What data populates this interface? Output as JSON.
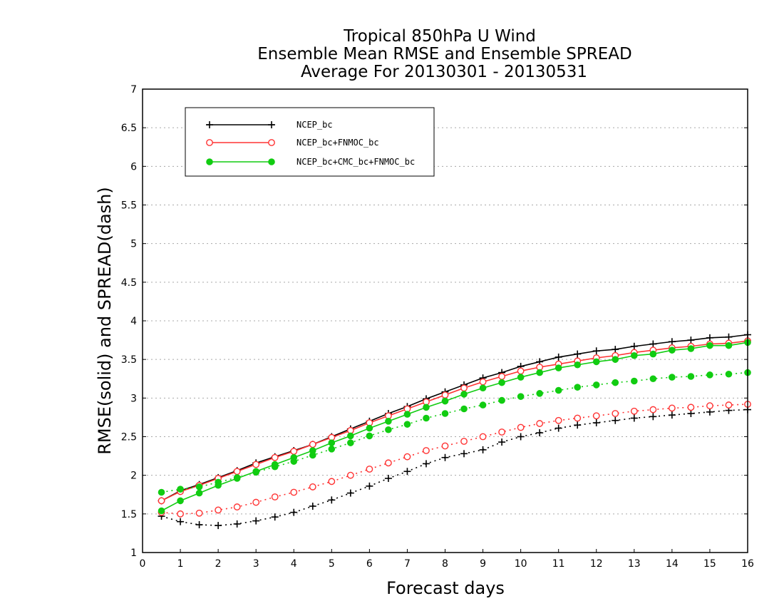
{
  "chart_data": {
    "type": "line",
    "title_lines": [
      "Tropical 850hPa U Wind",
      "Ensemble Mean RMSE and Ensemble SPREAD",
      "Average For 20130301 - 20130531"
    ],
    "xlabel": "Forecast days",
    "ylabel": "RMSE(solid) and SPREAD(dash)",
    "xlim": [
      0,
      16
    ],
    "ylim": [
      1,
      7
    ],
    "xticks": [
      0,
      1,
      2,
      3,
      4,
      5,
      6,
      7,
      8,
      9,
      10,
      11,
      12,
      13,
      14,
      15,
      16
    ],
    "xtick_labels": [
      "0",
      "1",
      "2",
      "3",
      "4",
      "5",
      "6",
      "7",
      "8",
      "9",
      "10",
      "11",
      "12",
      "13",
      "14",
      "15",
      "16"
    ],
    "yticks": [
      1,
      1.5,
      2,
      2.5,
      3,
      3.5,
      4,
      4.5,
      5,
      5.5,
      6,
      6.5,
      7
    ],
    "ytick_labels": [
      "1",
      "1.5",
      "2",
      "2.5",
      "3",
      "3.5",
      "4",
      "4.5",
      "5",
      "5.5",
      "6",
      "6.5",
      "7"
    ],
    "grid": "horizontal dotted",
    "legend_position": "top-left",
    "x": [
      0.5,
      1,
      1.5,
      2,
      2.5,
      3,
      3.5,
      4,
      4.5,
      5,
      5.5,
      6,
      6.5,
      7,
      7.5,
      8,
      8.5,
      9,
      9.5,
      10,
      10.5,
      11,
      11.5,
      12,
      12.5,
      13,
      13.5,
      14,
      14.5,
      15,
      15.5,
      16
    ],
    "series": [
      {
        "name": "NCEP_bc",
        "color": "#000000",
        "marker": "plus",
        "rmse": [
          1.67,
          1.8,
          1.88,
          1.97,
          2.06,
          2.16,
          2.24,
          2.32,
          2.4,
          2.5,
          2.6,
          2.7,
          2.8,
          2.89,
          2.99,
          3.08,
          3.17,
          3.26,
          3.33,
          3.41,
          3.47,
          3.53,
          3.57,
          3.61,
          3.63,
          3.67,
          3.7,
          3.73,
          3.75,
          3.78,
          3.79,
          3.82
        ],
        "spread": [
          1.47,
          1.4,
          1.36,
          1.35,
          1.37,
          1.41,
          1.46,
          1.52,
          1.6,
          1.68,
          1.77,
          1.86,
          1.96,
          2.05,
          2.15,
          2.23,
          2.28,
          2.33,
          2.43,
          2.5,
          2.55,
          2.61,
          2.65,
          2.68,
          2.71,
          2.74,
          2.76,
          2.78,
          2.8,
          2.82,
          2.84,
          2.85
        ]
      },
      {
        "name": "NCEP_bc+FNMOC_bc",
        "color": "#ff3333",
        "marker": "open-circle",
        "rmse": [
          1.67,
          1.79,
          1.87,
          1.96,
          2.05,
          2.14,
          2.23,
          2.31,
          2.4,
          2.49,
          2.58,
          2.68,
          2.77,
          2.86,
          2.95,
          3.04,
          3.13,
          3.21,
          3.28,
          3.35,
          3.4,
          3.44,
          3.48,
          3.52,
          3.55,
          3.59,
          3.62,
          3.65,
          3.67,
          3.7,
          3.71,
          3.74
        ],
        "spread": [
          1.52,
          1.5,
          1.51,
          1.55,
          1.59,
          1.65,
          1.72,
          1.78,
          1.85,
          1.92,
          2.0,
          2.08,
          2.16,
          2.24,
          2.32,
          2.38,
          2.44,
          2.5,
          2.56,
          2.62,
          2.67,
          2.71,
          2.74,
          2.77,
          2.8,
          2.83,
          2.85,
          2.87,
          2.88,
          2.9,
          2.91,
          2.92
        ]
      },
      {
        "name": "NCEP_bc+CMC_bc+FNMOC_bc",
        "color": "#11cc11",
        "marker": "filled-circle",
        "rmse": [
          1.54,
          1.67,
          1.77,
          1.87,
          1.96,
          2.05,
          2.14,
          2.23,
          2.32,
          2.42,
          2.51,
          2.61,
          2.7,
          2.79,
          2.88,
          2.96,
          3.05,
          3.13,
          3.2,
          3.27,
          3.33,
          3.39,
          3.43,
          3.47,
          3.5,
          3.55,
          3.57,
          3.62,
          3.64,
          3.68,
          3.68,
          3.72
        ],
        "spread": [
          1.78,
          1.82,
          1.85,
          1.91,
          1.97,
          2.04,
          2.11,
          2.18,
          2.26,
          2.34,
          2.42,
          2.51,
          2.59,
          2.66,
          2.74,
          2.8,
          2.86,
          2.91,
          2.97,
          3.02,
          3.06,
          3.1,
          3.14,
          3.17,
          3.2,
          3.22,
          3.25,
          3.27,
          3.28,
          3.3,
          3.31,
          3.33
        ]
      }
    ]
  }
}
